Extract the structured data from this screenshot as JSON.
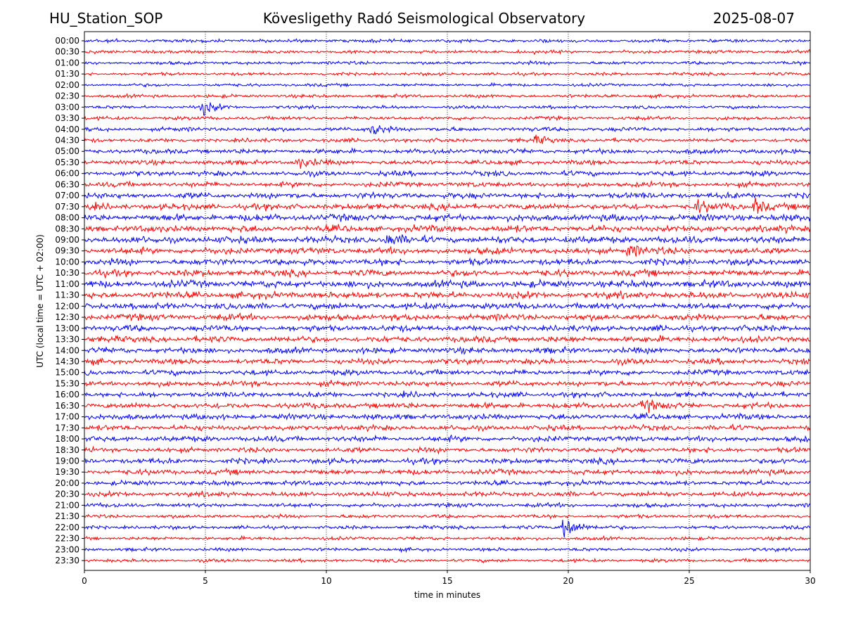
{
  "header": {
    "station": "HU_Station_SOP",
    "observatory": "Kövesligethy Radó Seismological Observatory",
    "date": "2025-08-07"
  },
  "chart_data": {
    "type": "line",
    "title": "Kövesligethy Radó Seismological Observatory",
    "xlabel": "time in minutes",
    "ylabel": "UTC (local time = UTC + 02:00)",
    "xlim": [
      0,
      30
    ],
    "xticks": [
      0,
      5,
      10,
      15,
      20,
      25,
      30
    ],
    "grid": "vertical dotted lines at 5-minute ticks",
    "trace_colors": [
      "#0000ff",
      "#ff0000"
    ],
    "rows": [
      {
        "label": "00:00",
        "activity": 0.3,
        "events": []
      },
      {
        "label": "00:30",
        "activity": 0.3,
        "events": []
      },
      {
        "label": "01:00",
        "activity": 0.3,
        "events": []
      },
      {
        "label": "01:30",
        "activity": 0.25,
        "events": []
      },
      {
        "label": "02:00",
        "activity": 0.25,
        "events": []
      },
      {
        "label": "02:30",
        "activity": 0.3,
        "events": []
      },
      {
        "label": "03:00",
        "activity": 0.3,
        "events": [
          {
            "t": 4.9,
            "amp": 1.8
          }
        ]
      },
      {
        "label": "03:30",
        "activity": 0.35,
        "events": []
      },
      {
        "label": "04:00",
        "activity": 0.45,
        "events": [
          {
            "t": 11.9,
            "amp": 1.6
          }
        ]
      },
      {
        "label": "04:30",
        "activity": 0.4,
        "events": [
          {
            "t": 18.7,
            "amp": 1.2
          }
        ]
      },
      {
        "label": "05:00",
        "activity": 0.55,
        "events": []
      },
      {
        "label": "05:30",
        "activity": 0.55,
        "events": [
          {
            "t": 8.8,
            "amp": 1.5
          }
        ]
      },
      {
        "label": "06:00",
        "activity": 0.6,
        "events": []
      },
      {
        "label": "06:30",
        "activity": 0.6,
        "events": []
      },
      {
        "label": "07:00",
        "activity": 0.75,
        "events": []
      },
      {
        "label": "07:30",
        "activity": 0.8,
        "events": [
          {
            "t": 25.3,
            "amp": 1.5
          },
          {
            "t": 27.7,
            "amp": 2.0
          }
        ]
      },
      {
        "label": "08:00",
        "activity": 0.9,
        "events": []
      },
      {
        "label": "08:30",
        "activity": 0.9,
        "events": []
      },
      {
        "label": "09:00",
        "activity": 0.95,
        "events": [
          {
            "t": 12.5,
            "amp": 1.6
          }
        ]
      },
      {
        "label": "09:30",
        "activity": 0.85,
        "events": [
          {
            "t": 22.5,
            "amp": 1.8
          }
        ]
      },
      {
        "label": "10:00",
        "activity": 0.8,
        "events": []
      },
      {
        "label": "10:30",
        "activity": 0.85,
        "events": []
      },
      {
        "label": "11:00",
        "activity": 0.95,
        "events": []
      },
      {
        "label": "11:30",
        "activity": 0.9,
        "events": []
      },
      {
        "label": "12:00",
        "activity": 0.85,
        "events": []
      },
      {
        "label": "12:30",
        "activity": 0.85,
        "events": []
      },
      {
        "label": "13:00",
        "activity": 0.8,
        "events": []
      },
      {
        "label": "13:30",
        "activity": 0.8,
        "events": []
      },
      {
        "label": "14:00",
        "activity": 0.75,
        "events": []
      },
      {
        "label": "14:30",
        "activity": 0.7,
        "events": []
      },
      {
        "label": "15:00",
        "activity": 0.65,
        "events": []
      },
      {
        "label": "15:30",
        "activity": 0.65,
        "events": []
      },
      {
        "label": "16:00",
        "activity": 0.65,
        "events": []
      },
      {
        "label": "16:30",
        "activity": 0.7,
        "events": [
          {
            "t": 23.1,
            "amp": 1.6
          }
        ]
      },
      {
        "label": "17:00",
        "activity": 0.7,
        "events": []
      },
      {
        "label": "17:30",
        "activity": 0.65,
        "events": []
      },
      {
        "label": "18:00",
        "activity": 0.7,
        "events": []
      },
      {
        "label": "18:30",
        "activity": 0.6,
        "events": []
      },
      {
        "label": "19:00",
        "activity": 0.65,
        "events": []
      },
      {
        "label": "19:30",
        "activity": 0.65,
        "events": []
      },
      {
        "label": "20:00",
        "activity": 0.55,
        "events": []
      },
      {
        "label": "20:30",
        "activity": 0.6,
        "events": []
      },
      {
        "label": "21:00",
        "activity": 0.45,
        "events": []
      },
      {
        "label": "21:30",
        "activity": 0.35,
        "events": []
      },
      {
        "label": "22:00",
        "activity": 0.35,
        "events": [
          {
            "t": 19.8,
            "amp": 4.0
          }
        ]
      },
      {
        "label": "22:30",
        "activity": 0.3,
        "events": []
      },
      {
        "label": "23:00",
        "activity": 0.3,
        "events": []
      },
      {
        "label": "23:30",
        "activity": 0.3,
        "events": []
      }
    ]
  }
}
